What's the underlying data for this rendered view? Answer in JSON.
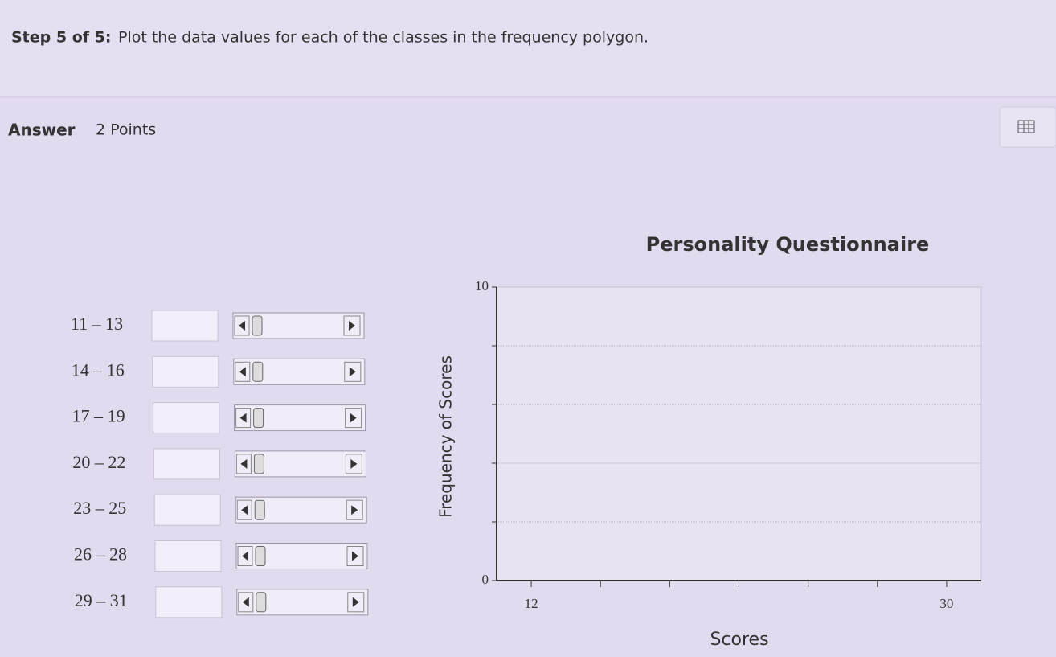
{
  "header": {
    "step": "Step 5 of 5:",
    "instruction": "Plot the data values for each of the classes in the frequency polygon."
  },
  "answer": {
    "label": "Answer",
    "points": "2 Points"
  },
  "classes": [
    "11 – 13",
    "14 – 16",
    "17 – 19",
    "20 – 22",
    "23 – 25",
    "26 – 28",
    "29 – 31"
  ],
  "chart_data": {
    "type": "line",
    "title": "Personality Questionnaire",
    "x_label": "Scores",
    "y_label": "Frequency of Scores",
    "xlim": [
      10.5,
      31.5
    ],
    "xticks": [
      12,
      {
        "value": 15,
        "label": null
      },
      {
        "value": 18,
        "label": null
      },
      {
        "value": 21,
        "label": null
      },
      {
        "value": 24,
        "label": null
      },
      {
        "value": 27,
        "label": null
      },
      30
    ],
    "ylim": [
      0,
      10
    ],
    "yticks": [
      0,
      {
        "value": 2,
        "label": null
      },
      {
        "value": 4,
        "label": null
      },
      {
        "value": 6,
        "label": null
      },
      {
        "value": 8,
        "label": null
      },
      10
    ],
    "grid": true
  }
}
